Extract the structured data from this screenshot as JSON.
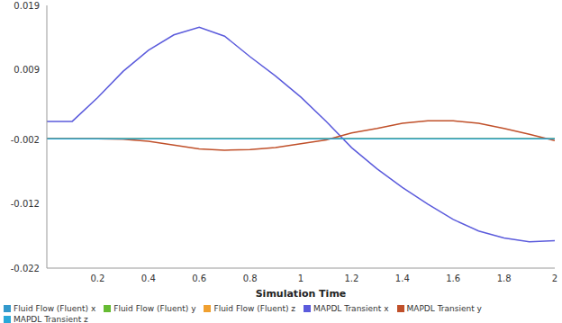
{
  "chart_data": {
    "type": "line",
    "x_label": "Simulation Time",
    "x": [
      0,
      0.1,
      0.2,
      0.3,
      0.4,
      0.5,
      0.6,
      0.7,
      0.8,
      0.9,
      1.0,
      1.1,
      1.2,
      1.3,
      1.4,
      1.5,
      1.6,
      1.7,
      1.8,
      1.9,
      2.0
    ],
    "xlim": [
      0,
      2
    ],
    "xticks": [
      0.2,
      0.4,
      0.6,
      0.8,
      1,
      1.2,
      1.4,
      1.6,
      1.8,
      2
    ],
    "ylim": [
      -0.022,
      0.019
    ],
    "yticks": [
      0.019,
      0.009,
      -0.002,
      -0.012,
      -0.022
    ],
    "grid": false,
    "legend": "bottom",
    "series": [
      {
        "name": "Fluid Flow (Fluent) x",
        "color": "#3399cc",
        "values": [
          -0.0018,
          -0.0018,
          -0.0018,
          -0.0018,
          -0.0018,
          -0.0018,
          -0.0018,
          -0.0018,
          -0.0018,
          -0.0018,
          -0.0018,
          -0.0018,
          -0.0018,
          -0.0018,
          -0.0018,
          -0.0018,
          -0.0018,
          -0.0018,
          -0.0018,
          -0.0018,
          -0.0018
        ]
      },
      {
        "name": "Fluid Flow (Fluent) y",
        "color": "#66bb33",
        "values": [
          -0.0018,
          -0.0018,
          -0.0018,
          -0.0018,
          -0.0018,
          -0.0018,
          -0.0018,
          -0.0018,
          -0.0018,
          -0.0018,
          -0.0018,
          -0.0018,
          -0.0018,
          -0.0018,
          -0.0018,
          -0.0018,
          -0.0018,
          -0.0018,
          -0.0018,
          -0.0018,
          -0.0018
        ]
      },
      {
        "name": "Fluid Flow (Fluent) z",
        "color": "#f0a030",
        "values": [
          -0.0018,
          -0.0018,
          -0.0018,
          -0.0018,
          -0.0018,
          -0.0018,
          -0.0018,
          -0.0018,
          -0.0018,
          -0.0018,
          -0.0018,
          -0.0018,
          -0.0018,
          -0.0018,
          -0.0018,
          -0.0018,
          -0.0018,
          -0.0018,
          -0.0018,
          -0.0018,
          -0.0018
        ]
      },
      {
        "name": "MAPDL Transient x",
        "color": "#5b5bdc",
        "values": [
          0.0009,
          0.0009,
          0.0046,
          0.0087,
          0.012,
          0.0144,
          0.0156,
          0.0142,
          0.011,
          0.008,
          0.0047,
          0.0009,
          -0.0032,
          -0.0065,
          -0.0094,
          -0.012,
          -0.0144,
          -0.0162,
          -0.0173,
          -0.0179,
          -0.0177
        ]
      },
      {
        "name": "MAPDL Transient y",
        "color": "#c0502a",
        "values": [
          -0.0018,
          -0.0018,
          -0.0018,
          -0.0019,
          -0.0022,
          -0.0028,
          -0.0034,
          -0.0036,
          -0.0035,
          -0.0032,
          -0.0026,
          -0.002,
          -0.0009,
          -0.0002,
          0.0006,
          0.001,
          0.001,
          0.0006,
          -0.0002,
          -0.0011,
          -0.0021
        ]
      },
      {
        "name": "MAPDL Transient z",
        "color": "#2aa8d8",
        "values": [
          -0.0018,
          -0.0018,
          -0.0018,
          -0.0018,
          -0.0018,
          -0.0018,
          -0.0018,
          -0.0018,
          -0.0018,
          -0.0018,
          -0.0018,
          -0.0018,
          -0.0018,
          -0.0018,
          -0.0018,
          -0.0018,
          -0.0018,
          -0.0018,
          -0.0018,
          -0.0018,
          -0.0018
        ]
      }
    ]
  }
}
